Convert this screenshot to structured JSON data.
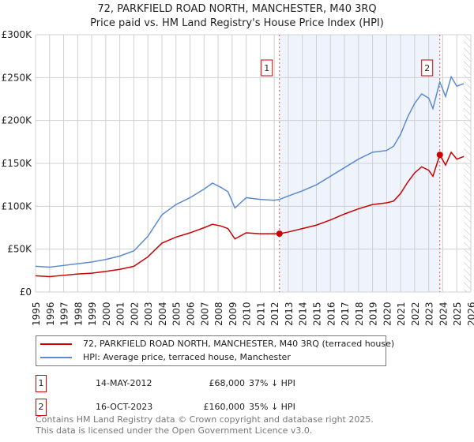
{
  "chart_data": {
    "type": "line",
    "title": "72, PARKFIELD ROAD NORTH, MANCHESTER, M40 3RQ",
    "subtitle": "Price paid vs. HM Land Registry's House Price Index (HPI)",
    "ylim": [
      0,
      300000
    ],
    "xlim": [
      1995,
      2026
    ],
    "y_ticks": [
      {
        "v": 0,
        "label": "£0"
      },
      {
        "v": 50000,
        "label": "£50K"
      },
      {
        "v": 100000,
        "label": "£100K"
      },
      {
        "v": 150000,
        "label": "£150K"
      },
      {
        "v": 200000,
        "label": "£200K"
      },
      {
        "v": 250000,
        "label": "£250K"
      },
      {
        "v": 300000,
        "label": "£300K"
      }
    ],
    "x_ticks": [
      "1995",
      "1996",
      "1997",
      "1998",
      "1999",
      "2000",
      "2001",
      "2002",
      "2003",
      "2004",
      "2005",
      "2006",
      "2007",
      "2008",
      "2009",
      "2010",
      "2011",
      "2012",
      "2013",
      "2014",
      "2015",
      "2016",
      "2017",
      "2018",
      "2019",
      "2020",
      "2021",
      "2022",
      "2023",
      "2024",
      "2025",
      "2026"
    ],
    "grid": true,
    "shaded_range": [
      2012.37,
      2023.79
    ],
    "forecast_hatch_from": 2025.5,
    "series": [
      {
        "name": "72, PARKFIELD ROAD NORTH, MANCHESTER, M40 3RQ (terraced house)",
        "color": "#cc0000",
        "x": [
          1995,
          1996,
          1997,
          1998,
          1999,
          2000,
          2001,
          2002,
          2003,
          2004,
          2005,
          2006,
          2007,
          2007.6,
          2008.2,
          2008.7,
          2009.2,
          2010,
          2011,
          2012,
          2012.37,
          2013,
          2014,
          2015,
          2016,
          2017,
          2018,
          2019,
          2020,
          2020.5,
          2021,
          2021.5,
          2022,
          2022.5,
          2023,
          2023.3,
          2023.79,
          2024.2,
          2024.6,
          2025,
          2025.5
        ],
        "y": [
          19000,
          18000,
          19500,
          21000,
          22000,
          24000,
          26500,
          30000,
          41000,
          57000,
          64000,
          69000,
          75000,
          79000,
          77000,
          74000,
          62000,
          69000,
          68000,
          68000,
          68000,
          70000,
          74000,
          78000,
          84000,
          91000,
          97000,
          102000,
          104000,
          106000,
          115000,
          128000,
          139000,
          146000,
          142000,
          135000,
          160000,
          148000,
          163000,
          155000,
          158000
        ]
      },
      {
        "name": "HPI: Average price, terraced house, Manchester",
        "color": "#5b8bd0",
        "x": [
          1995,
          1996,
          1997,
          1998,
          1999,
          2000,
          2001,
          2002,
          2003,
          2004,
          2005,
          2006,
          2007,
          2007.6,
          2008.2,
          2008.7,
          2009.2,
          2010,
          2011,
          2012,
          2012.37,
          2013,
          2014,
          2015,
          2016,
          2017,
          2018,
          2019,
          2020,
          2020.5,
          2021,
          2021.5,
          2022,
          2022.5,
          2023,
          2023.3,
          2023.79,
          2024.2,
          2024.6,
          2025,
          2025.5
        ],
        "y": [
          30000,
          29000,
          31000,
          33000,
          35000,
          38000,
          42000,
          48000,
          65000,
          90000,
          102000,
          110000,
          120000,
          127000,
          122000,
          117000,
          98000,
          110000,
          108000,
          107000,
          108000,
          112000,
          118000,
          125000,
          135000,
          145000,
          155000,
          163000,
          165000,
          170000,
          184000,
          204000,
          220000,
          231000,
          226000,
          214000,
          245000,
          228000,
          251000,
          240000,
          243000
        ]
      }
    ],
    "sales": [
      {
        "label": "1",
        "x": 2012.37,
        "y": 68000,
        "date": "14-MAY-2012",
        "price": "£68,000",
        "hpi": "37% ↓ HPI"
      },
      {
        "label": "2",
        "x": 2023.79,
        "y": 160000,
        "date": "16-OCT-2023",
        "price": "£160,000",
        "hpi": "35% ↓ HPI"
      }
    ]
  },
  "footer": [
    "Contains HM Land Registry data © Crown copyright and database right 2025.",
    "This data is licensed under the Open Government Licence v3.0."
  ]
}
